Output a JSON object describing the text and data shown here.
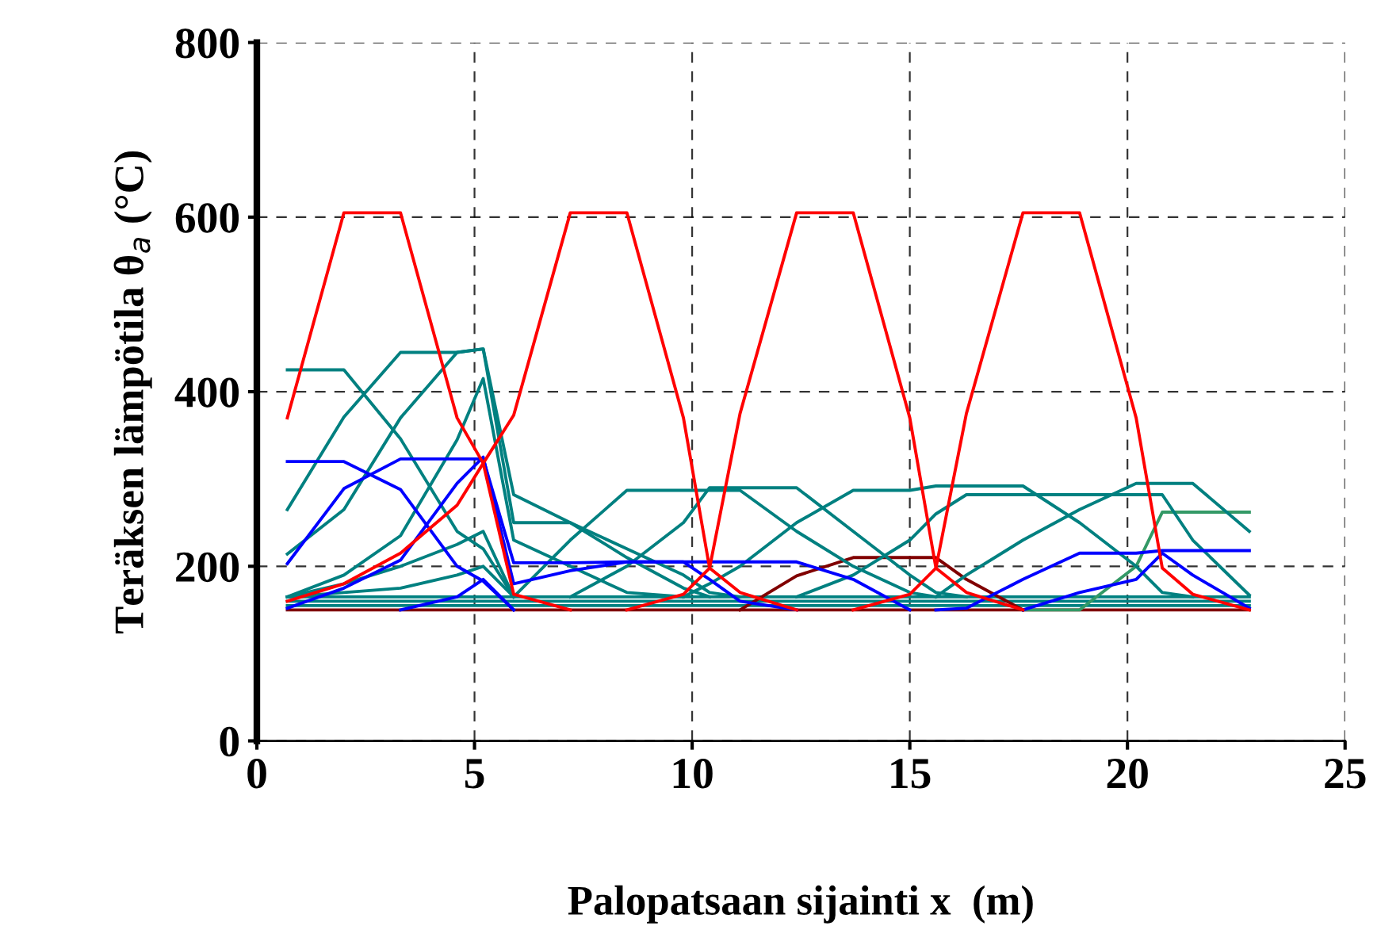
{
  "chart_data": {
    "type": "line",
    "xlabel": "Palopatsaan sijainti x  (m)",
    "ylabel": "Teräksen lämpötila θ$_{a}$ (°C)",
    "x": [
      0.7,
      2.0,
      3.3,
      4.6,
      5.2,
      5.9,
      7.2,
      8.5,
      9.8,
      10.4,
      11.1,
      12.4,
      13.7,
      15.0,
      15.6,
      16.3,
      17.6,
      18.9,
      20.2,
      20.8,
      21.5,
      22.8
    ],
    "xlim": [
      0,
      25
    ],
    "xticks": [
      0,
      5,
      10,
      15,
      20,
      25
    ],
    "ylim": [
      0,
      800
    ],
    "yticks": [
      0,
      200,
      400,
      600,
      800
    ],
    "grid": true,
    "marker": "none",
    "line_style": "solid",
    "series": [
      {
        "color": "#800000",
        "values": [
          150,
          150,
          150,
          150,
          150,
          150,
          150,
          150,
          150,
          150,
          150,
          150,
          150,
          150,
          150,
          150,
          150,
          150,
          150,
          150,
          150,
          150
        ]
      },
      {
        "color": "#008080",
        "values": [
          155,
          155,
          155,
          155,
          155,
          155,
          155,
          155,
          155,
          155,
          155,
          155,
          155,
          155,
          155,
          155,
          155,
          155,
          155,
          155,
          155,
          155
        ]
      },
      {
        "color": "#008080",
        "values": [
          160,
          160,
          160,
          160,
          160,
          160,
          160,
          160,
          160,
          160,
          160,
          160,
          160,
          160,
          160,
          160,
          160,
          160,
          160,
          160,
          160,
          160
        ]
      },
      {
        "color": "#008080",
        "values": [
          165,
          165,
          165,
          165,
          165,
          165,
          165,
          165,
          165,
          165,
          165,
          165,
          165,
          165,
          165,
          165,
          165,
          165,
          165,
          165,
          165,
          165
        ]
      },
      {
        "color": "#800000",
        "values": [
          null,
          null,
          null,
          null,
          null,
          null,
          null,
          null,
          null,
          null,
          150,
          189,
          210,
          210,
          210,
          185,
          150,
          null,
          null,
          null,
          null,
          null
        ]
      },
      {
        "color": "#339966",
        "values": [
          null,
          null,
          null,
          null,
          null,
          null,
          null,
          null,
          null,
          null,
          null,
          null,
          null,
          null,
          null,
          null,
          150,
          150,
          200,
          262,
          262,
          262
        ]
      },
      {
        "color": "#008080",
        "values": [
          425,
          425,
          346,
          240,
          220,
          165,
          null,
          null,
          null,
          null,
          null,
          null,
          null,
          null,
          null,
          null,
          null,
          null,
          null,
          null,
          null,
          null
        ]
      },
      {
        "color": "#008080",
        "values": [
          265,
          371,
          445,
          445,
          449,
          282,
          250,
          220,
          190,
          170,
          165,
          null,
          null,
          null,
          null,
          null,
          null,
          null,
          null,
          null,
          null,
          null
        ]
      },
      {
        "color": "#008080",
        "values": [
          214,
          265,
          370,
          445,
          449,
          250,
          250,
          210,
          175,
          165,
          null,
          null,
          null,
          null,
          null,
          null,
          null,
          null,
          null,
          null,
          null,
          null
        ]
      },
      {
        "color": "#008080",
        "values": [
          165,
          190,
          235,
          345,
          415,
          230,
          200,
          170,
          165,
          null,
          null,
          null,
          null,
          null,
          null,
          null,
          null,
          null,
          null,
          null,
          null,
          null
        ]
      },
      {
        "color": "#008080",
        "values": [
          165,
          180,
          200,
          225,
          240,
          165,
          null,
          null,
          null,
          null,
          null,
          null,
          null,
          null,
          null,
          null,
          null,
          null,
          null,
          null,
          null,
          null
        ]
      },
      {
        "color": "#008080",
        "values": [
          165,
          170,
          175,
          190,
          200,
          165,
          null,
          null,
          null,
          null,
          null,
          null,
          null,
          null,
          null,
          null,
          null,
          null,
          null,
          null,
          null,
          null
        ]
      },
      {
        "color": "#008080",
        "values": [
          null,
          null,
          null,
          null,
          null,
          165,
          230,
          287,
          287,
          287,
          287,
          240,
          200,
          170,
          165,
          null,
          null,
          null,
          null,
          null,
          null,
          null
        ]
      },
      {
        "color": "#008080",
        "values": [
          null,
          null,
          null,
          null,
          null,
          null,
          165,
          200,
          250,
          290,
          290,
          290,
          240,
          190,
          170,
          165,
          null,
          null,
          null,
          null,
          null,
          null
        ]
      },
      {
        "color": "#008080",
        "values": [
          null,
          null,
          null,
          null,
          null,
          null,
          null,
          null,
          165,
          180,
          200,
          250,
          287,
          287,
          292,
          292,
          292,
          250,
          200,
          170,
          165,
          null
        ]
      },
      {
        "color": "#008080",
        "values": [
          null,
          null,
          null,
          null,
          null,
          null,
          null,
          null,
          null,
          null,
          null,
          165,
          190,
          230,
          260,
          282,
          282,
          282,
          282,
          282,
          230,
          167
        ]
      },
      {
        "color": "#008080",
        "values": [
          null,
          null,
          null,
          null,
          null,
          null,
          null,
          null,
          null,
          null,
          null,
          null,
          null,
          null,
          165,
          190,
          230,
          265,
          295,
          295,
          295,
          240
        ]
      },
      {
        "color": "#0000ff",
        "values": [
          320,
          320,
          288,
          200,
          183,
          150,
          null,
          null,
          null,
          null,
          null,
          null,
          null,
          null,
          null,
          null,
          null,
          null,
          null,
          null,
          null,
          null
        ]
      },
      {
        "color": "#0000ff",
        "values": [
          203,
          289,
          323,
          323,
          323,
          204,
          204,
          205,
          205,
          205,
          205,
          205,
          185,
          150,
          null,
          null,
          null,
          null,
          null,
          null,
          null,
          null
        ]
      },
      {
        "color": "#0000ff",
        "values": [
          152,
          175,
          207,
          295,
          325,
          180,
          195,
          205,
          205,
          185,
          160,
          150,
          null,
          null,
          null,
          null,
          null,
          null,
          null,
          null,
          null,
          null
        ]
      },
      {
        "color": "#0000ff",
        "values": [
          null,
          null,
          150,
          165,
          185,
          150,
          null,
          null,
          null,
          null,
          null,
          null,
          null,
          null,
          null,
          null,
          null,
          null,
          null,
          null,
          null,
          null
        ]
      },
      {
        "color": "#0000ff",
        "values": [
          null,
          null,
          null,
          null,
          null,
          null,
          null,
          null,
          null,
          null,
          null,
          null,
          null,
          null,
          150,
          152,
          185,
          215,
          215,
          218,
          218,
          218
        ]
      },
      {
        "color": "#0000ff",
        "values": [
          null,
          null,
          null,
          null,
          null,
          null,
          null,
          null,
          null,
          null,
          null,
          null,
          null,
          null,
          null,
          null,
          150,
          170,
          185,
          215,
          190,
          152
        ]
      },
      {
        "color": "#ff0000",
        "values": [
          370,
          605,
          605,
          370,
          318,
          168,
          150,
          null,
          null,
          null,
          null,
          null,
          null,
          null,
          null,
          null,
          null,
          null,
          null,
          null,
          null,
          null
        ]
      },
      {
        "color": "#ff0000",
        "values": [
          160,
          180,
          215,
          270,
          318,
          373,
          605,
          605,
          370,
          198,
          170,
          150,
          null,
          null,
          null,
          null,
          null,
          null,
          null,
          null,
          null,
          null
        ]
      },
      {
        "color": "#ff0000",
        "values": [
          null,
          null,
          null,
          null,
          null,
          null,
          null,
          150,
          168,
          198,
          375,
          605,
          605,
          370,
          198,
          170,
          150,
          null,
          null,
          null,
          null,
          null
        ]
      },
      {
        "color": "#ff0000",
        "values": [
          null,
          null,
          null,
          null,
          null,
          null,
          null,
          null,
          null,
          null,
          null,
          null,
          150,
          168,
          198,
          375,
          605,
          605,
          370,
          198,
          168,
          150
        ]
      }
    ]
  }
}
